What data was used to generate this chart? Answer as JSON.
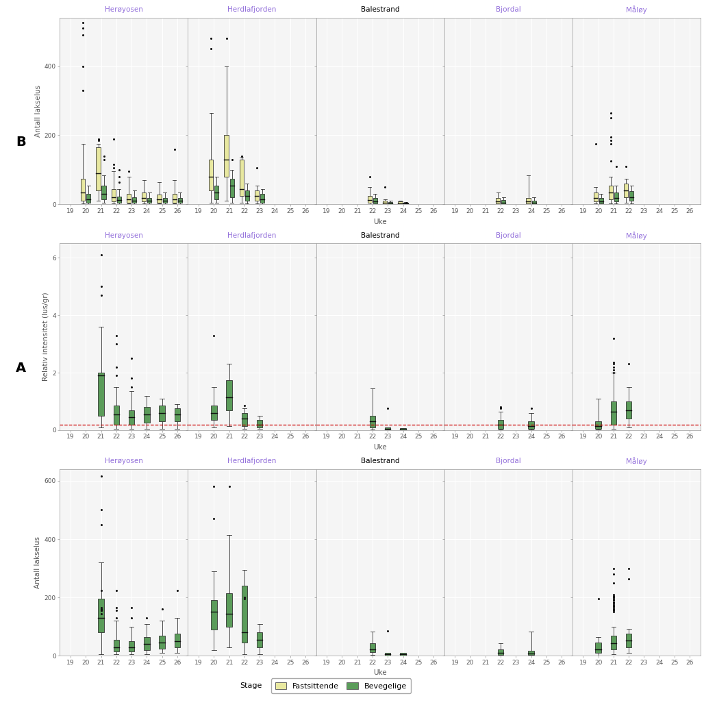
{
  "stations": [
    "Herøyosen",
    "Herdlafjorden",
    "Balestrand",
    "Bjordal",
    "Måløy"
  ],
  "station_title_colors": [
    "#9370DB",
    "#9370DB",
    "#000000",
    "#9370DB",
    "#9370DB"
  ],
  "weeks_all": [
    19,
    20,
    21,
    22,
    23,
    24,
    25,
    26
  ],
  "row_ylabels": [
    "Antall lakselus",
    "Relativ intensitet (lus/gr)",
    "Antall lakselus"
  ],
  "xlabel": "Uke",
  "panel_bg": "#F0F0F0",
  "plot_bg": "#F5F5F5",
  "strip_bg": "#DDDDDD",
  "grid_color": "#FFFFFF",
  "box_color_green": "#5B9C5A",
  "box_color_yellow": "#E8E8A0",
  "dashed_line_y": 0.2,
  "dashed_line_color": "#CC0000",
  "rowA_ylim": [
    0,
    640
  ],
  "rowA_yticks": [
    0,
    200,
    400,
    600
  ],
  "rowB_ylim": [
    0,
    6.5
  ],
  "rowB_yticks": [
    0,
    2,
    4,
    6
  ],
  "rowC_ylim": [
    0,
    540
  ],
  "rowC_yticks": [
    0,
    200,
    400
  ],
  "rowA": {
    "Herøyosen": {
      "boxes": [
        {
          "week": 21,
          "q1": 80,
          "median": 130,
          "q3": 195,
          "whislo": 5,
          "whishi": 320,
          "fliers": [
            450,
            500,
            615,
            225,
            165,
            160,
            155,
            155,
            145
          ]
        },
        {
          "week": 22,
          "q1": 15,
          "median": 30,
          "q3": 55,
          "whislo": 5,
          "whishi": 120,
          "fliers": [
            155,
            165,
            225,
            130
          ]
        },
        {
          "week": 23,
          "q1": 15,
          "median": 30,
          "q3": 50,
          "whislo": 5,
          "whishi": 100,
          "fliers": [
            130,
            165
          ]
        },
        {
          "week": 24,
          "q1": 20,
          "median": 40,
          "q3": 65,
          "whislo": 5,
          "whishi": 110,
          "fliers": [
            130
          ]
        },
        {
          "week": 25,
          "q1": 25,
          "median": 45,
          "q3": 70,
          "whislo": 10,
          "whishi": 120,
          "fliers": [
            160
          ]
        },
        {
          "week": 26,
          "q1": 30,
          "median": 50,
          "q3": 75,
          "whislo": 10,
          "whishi": 130,
          "fliers": [
            225
          ]
        }
      ]
    },
    "Herdlafjorden": {
      "boxes": [
        {
          "week": 20,
          "q1": 90,
          "median": 150,
          "q3": 190,
          "whislo": 20,
          "whishi": 290,
          "fliers": [
            470,
            580
          ]
        },
        {
          "week": 21,
          "q1": 100,
          "median": 145,
          "q3": 215,
          "whislo": 30,
          "whishi": 415,
          "fliers": [
            580
          ]
        },
        {
          "week": 22,
          "q1": 45,
          "median": 80,
          "q3": 240,
          "whislo": 5,
          "whishi": 295,
          "fliers": [
            195,
            200
          ]
        },
        {
          "week": 23,
          "q1": 30,
          "median": 55,
          "q3": 80,
          "whislo": 5,
          "whishi": 110,
          "fliers": []
        }
      ]
    },
    "Balestrand": {
      "boxes": [
        {
          "week": 22,
          "q1": 12,
          "median": 22,
          "q3": 42,
          "whislo": 3,
          "whishi": 82,
          "fliers": []
        },
        {
          "week": 23,
          "q1": 2,
          "median": 5,
          "q3": 10,
          "whislo": 0,
          "whishi": 10,
          "fliers": [
            85
          ]
        },
        {
          "week": 24,
          "q1": 2,
          "median": 5,
          "q3": 10,
          "whislo": 0,
          "whishi": 10,
          "fliers": []
        }
      ]
    },
    "Bjordal": {
      "boxes": [
        {
          "week": 22,
          "q1": 3,
          "median": 10,
          "q3": 22,
          "whislo": 0,
          "whishi": 42,
          "fliers": []
        },
        {
          "week": 24,
          "q1": 3,
          "median": 8,
          "q3": 18,
          "whislo": 0,
          "whishi": 82,
          "fliers": []
        }
      ]
    },
    "Måløy": {
      "boxes": [
        {
          "week": 20,
          "q1": 10,
          "median": 22,
          "q3": 45,
          "whislo": 2,
          "whishi": 65,
          "fliers": [
            195
          ]
        },
        {
          "week": 21,
          "q1": 22,
          "median": 42,
          "q3": 68,
          "whislo": 5,
          "whishi": 100,
          "fliers": [
            150,
            155,
            160,
            165,
            170,
            175,
            180,
            185,
            190,
            195,
            200,
            205,
            210,
            250,
            280,
            300
          ]
        },
        {
          "week": 22,
          "q1": 30,
          "median": 52,
          "q3": 75,
          "whislo": 10,
          "whishi": 92,
          "fliers": [
            265,
            300
          ]
        }
      ]
    }
  },
  "rowB": {
    "Herøyosen": {
      "boxes": [
        {
          "week": 21,
          "q1": 0.5,
          "median": 1.9,
          "q3": 2.0,
          "whislo": 0.1,
          "whishi": 3.6,
          "fliers": [
            4.7,
            5.0,
            6.1
          ]
        },
        {
          "week": 22,
          "q1": 0.2,
          "median": 0.55,
          "q3": 0.85,
          "whislo": 0.05,
          "whishi": 1.5,
          "fliers": [
            1.9,
            2.2,
            3.0,
            3.3
          ]
        },
        {
          "week": 23,
          "q1": 0.2,
          "median": 0.45,
          "q3": 0.7,
          "whislo": 0.05,
          "whishi": 1.35,
          "fliers": [
            1.5,
            1.8,
            2.5
          ]
        },
        {
          "week": 24,
          "q1": 0.25,
          "median": 0.55,
          "q3": 0.8,
          "whislo": 0.05,
          "whishi": 1.2,
          "fliers": []
        },
        {
          "week": 25,
          "q1": 0.3,
          "median": 0.6,
          "q3": 0.85,
          "whislo": 0.05,
          "whishi": 1.1,
          "fliers": []
        },
        {
          "week": 26,
          "q1": 0.3,
          "median": 0.55,
          "q3": 0.75,
          "whislo": 0.05,
          "whishi": 0.9,
          "fliers": []
        }
      ]
    },
    "Herdlafjorden": {
      "boxes": [
        {
          "week": 20,
          "q1": 0.35,
          "median": 0.6,
          "q3": 0.85,
          "whislo": 0.1,
          "whishi": 1.5,
          "fliers": [
            3.3
          ]
        },
        {
          "week": 21,
          "q1": 0.7,
          "median": 1.15,
          "q3": 1.75,
          "whislo": 0.15,
          "whishi": 2.3,
          "fliers": []
        },
        {
          "week": 22,
          "q1": 0.15,
          "median": 0.4,
          "q3": 0.6,
          "whislo": 0.05,
          "whishi": 0.75,
          "fliers": [
            0.85
          ]
        },
        {
          "week": 23,
          "q1": 0.1,
          "median": 0.2,
          "q3": 0.35,
          "whislo": 0.05,
          "whishi": 0.5,
          "fliers": []
        }
      ]
    },
    "Balestrand": {
      "boxes": [
        {
          "week": 22,
          "q1": 0.1,
          "median": 0.3,
          "q3": 0.5,
          "whislo": 0.02,
          "whishi": 1.45,
          "fliers": []
        },
        {
          "week": 23,
          "q1": 0.02,
          "median": 0.05,
          "q3": 0.1,
          "whislo": 0.0,
          "whishi": 0.1,
          "fliers": [
            0.75
          ]
        },
        {
          "week": 24,
          "q1": 0.01,
          "median": 0.03,
          "q3": 0.07,
          "whislo": 0.0,
          "whishi": 0.07,
          "fliers": []
        }
      ]
    },
    "Bjordal": {
      "boxes": [
        {
          "week": 22,
          "q1": 0.05,
          "median": 0.2,
          "q3": 0.35,
          "whislo": 0.01,
          "whishi": 0.65,
          "fliers": [
            0.75,
            0.8
          ]
        },
        {
          "week": 24,
          "q1": 0.05,
          "median": 0.15,
          "q3": 0.3,
          "whislo": 0.01,
          "whishi": 0.6,
          "fliers": [
            0.75
          ]
        }
      ]
    },
    "Måløy": {
      "boxes": [
        {
          "week": 20,
          "q1": 0.05,
          "median": 0.15,
          "q3": 0.3,
          "whislo": 0.01,
          "whishi": 1.1,
          "fliers": []
        },
        {
          "week": 21,
          "q1": 0.2,
          "median": 0.65,
          "q3": 1.0,
          "whislo": 0.05,
          "whishi": 2.0,
          "fliers": [
            2.0,
            2.1,
            2.2,
            2.3,
            2.35,
            3.2
          ]
        },
        {
          "week": 22,
          "q1": 0.4,
          "median": 0.7,
          "q3": 1.0,
          "whislo": 0.1,
          "whishi": 1.5,
          "fliers": [
            2.3
          ]
        }
      ]
    }
  },
  "rowC": {
    "Herøyosen": {
      "weeks": [
        20,
        21,
        22,
        23,
        24,
        25,
        26
      ],
      "fastsittende": [
        {
          "week": 20,
          "q1": 10,
          "median": 35,
          "q3": 75,
          "whislo": 2,
          "whishi": 175,
          "fliers": [
            330,
            400,
            490,
            510,
            525
          ]
        },
        {
          "week": 21,
          "q1": 40,
          "median": 90,
          "q3": 165,
          "whislo": 10,
          "whishi": 175,
          "fliers": [
            185,
            190
          ]
        },
        {
          "week": 22,
          "q1": 8,
          "median": 20,
          "q3": 45,
          "whislo": 2,
          "whishi": 95,
          "fliers": [
            105,
            115,
            190
          ]
        },
        {
          "week": 23,
          "q1": 5,
          "median": 15,
          "q3": 30,
          "whislo": 2,
          "whishi": 80,
          "fliers": [
            95
          ]
        },
        {
          "week": 24,
          "q1": 8,
          "median": 18,
          "q3": 35,
          "whislo": 2,
          "whishi": 70,
          "fliers": []
        },
        {
          "week": 25,
          "q1": 5,
          "median": 15,
          "q3": 28,
          "whislo": 2,
          "whishi": 65,
          "fliers": []
        },
        {
          "week": 26,
          "q1": 5,
          "median": 15,
          "q3": 30,
          "whislo": 2,
          "whishi": 70,
          "fliers": [
            160
          ]
        }
      ],
      "bevegelige": [
        {
          "week": 20,
          "q1": 5,
          "median": 15,
          "q3": 30,
          "whislo": 1,
          "whishi": 55,
          "fliers": []
        },
        {
          "week": 21,
          "q1": 15,
          "median": 30,
          "q3": 55,
          "whislo": 5,
          "whishi": 85,
          "fliers": [
            130,
            140
          ]
        },
        {
          "week": 22,
          "q1": 5,
          "median": 12,
          "q3": 22,
          "whislo": 1,
          "whishi": 45,
          "fliers": [
            65,
            80,
            100
          ]
        },
        {
          "week": 23,
          "q1": 4,
          "median": 10,
          "q3": 20,
          "whislo": 1,
          "whishi": 40,
          "fliers": []
        },
        {
          "week": 24,
          "q1": 4,
          "median": 10,
          "q3": 18,
          "whislo": 1,
          "whishi": 35,
          "fliers": []
        },
        {
          "week": 25,
          "q1": 4,
          "median": 10,
          "q3": 18,
          "whislo": 1,
          "whishi": 35,
          "fliers": []
        },
        {
          "week": 26,
          "q1": 4,
          "median": 10,
          "q3": 18,
          "whislo": 1,
          "whishi": 35,
          "fliers": []
        }
      ]
    },
    "Herdlafjorden": {
      "weeks": [
        20,
        21,
        22,
        23
      ],
      "fastsittende": [
        {
          "week": 20,
          "q1": 40,
          "median": 80,
          "q3": 130,
          "whislo": 5,
          "whishi": 265,
          "fliers": [
            450,
            480
          ]
        },
        {
          "week": 21,
          "q1": 80,
          "median": 130,
          "q3": 200,
          "whislo": 10,
          "whishi": 400,
          "fliers": [
            480
          ]
        },
        {
          "week": 22,
          "q1": 25,
          "median": 45,
          "q3": 130,
          "whislo": 5,
          "whishi": 135,
          "fliers": [
            140
          ]
        },
        {
          "week": 23,
          "q1": 10,
          "median": 25,
          "q3": 40,
          "whislo": 2,
          "whishi": 55,
          "fliers": [
            105
          ]
        }
      ],
      "bevegelige": [
        {
          "week": 20,
          "q1": 15,
          "median": 35,
          "q3": 55,
          "whislo": 5,
          "whishi": 80,
          "fliers": []
        },
        {
          "week": 21,
          "q1": 20,
          "median": 55,
          "q3": 75,
          "whislo": 5,
          "whishi": 100,
          "fliers": [
            130
          ]
        },
        {
          "week": 22,
          "q1": 10,
          "median": 25,
          "q3": 40,
          "whislo": 2,
          "whishi": 60,
          "fliers": []
        },
        {
          "week": 23,
          "q1": 5,
          "median": 15,
          "q3": 30,
          "whislo": 1,
          "whishi": 45,
          "fliers": []
        }
      ]
    },
    "Balestrand": {
      "weeks": [
        22,
        23,
        24
      ],
      "fastsittende": [
        {
          "week": 22,
          "q1": 5,
          "median": 12,
          "q3": 25,
          "whislo": 1,
          "whishi": 50,
          "fliers": [
            80
          ]
        },
        {
          "week": 23,
          "q1": 1,
          "median": 5,
          "q3": 10,
          "whislo": 0,
          "whishi": 15,
          "fliers": [
            50
          ]
        },
        {
          "week": 24,
          "q1": 1,
          "median": 3,
          "q3": 8,
          "whislo": 0,
          "whishi": 10,
          "fliers": []
        }
      ],
      "bevegelige": [
        {
          "week": 22,
          "q1": 3,
          "median": 8,
          "q3": 18,
          "whislo": 0,
          "whishi": 30,
          "fliers": []
        },
        {
          "week": 23,
          "q1": 0,
          "median": 3,
          "q3": 7,
          "whislo": 0,
          "whishi": 10,
          "fliers": []
        },
        {
          "week": 24,
          "q1": 0,
          "median": 2,
          "q3": 5,
          "whislo": 0,
          "whishi": 7,
          "fliers": [
            5
          ]
        }
      ]
    },
    "Bjordal": {
      "weeks": [
        22,
        24
      ],
      "fastsittende": [
        {
          "week": 22,
          "q1": 2,
          "median": 8,
          "q3": 18,
          "whislo": 0,
          "whishi": 35,
          "fliers": []
        },
        {
          "week": 24,
          "q1": 2,
          "median": 8,
          "q3": 18,
          "whislo": 0,
          "whishi": 85,
          "fliers": []
        }
      ],
      "bevegelige": [
        {
          "week": 22,
          "q1": 1,
          "median": 5,
          "q3": 12,
          "whislo": 0,
          "whishi": 20,
          "fliers": []
        },
        {
          "week": 24,
          "q1": 1,
          "median": 4,
          "q3": 10,
          "whislo": 0,
          "whishi": 20,
          "fliers": []
        }
      ]
    },
    "Måløy": {
      "weeks": [
        20,
        21,
        22
      ],
      "fastsittende": [
        {
          "week": 20,
          "q1": 8,
          "median": 18,
          "q3": 35,
          "whislo": 2,
          "whishi": 50,
          "fliers": [
            175
          ]
        },
        {
          "week": 21,
          "q1": 15,
          "median": 35,
          "q3": 55,
          "whislo": 3,
          "whishi": 80,
          "fliers": [
            125,
            175,
            185,
            195,
            250,
            265
          ]
        },
        {
          "week": 22,
          "q1": 20,
          "median": 40,
          "q3": 60,
          "whislo": 5,
          "whishi": 75,
          "fliers": [
            110
          ]
        }
      ],
      "bevegelige": [
        {
          "week": 20,
          "q1": 3,
          "median": 8,
          "q3": 18,
          "whislo": 1,
          "whishi": 30,
          "fliers": []
        },
        {
          "week": 21,
          "q1": 8,
          "median": 18,
          "q3": 35,
          "whislo": 2,
          "whishi": 55,
          "fliers": [
            110
          ]
        },
        {
          "week": 22,
          "q1": 10,
          "median": 20,
          "q3": 38,
          "whislo": 2,
          "whishi": 55,
          "fliers": []
        }
      ]
    }
  }
}
